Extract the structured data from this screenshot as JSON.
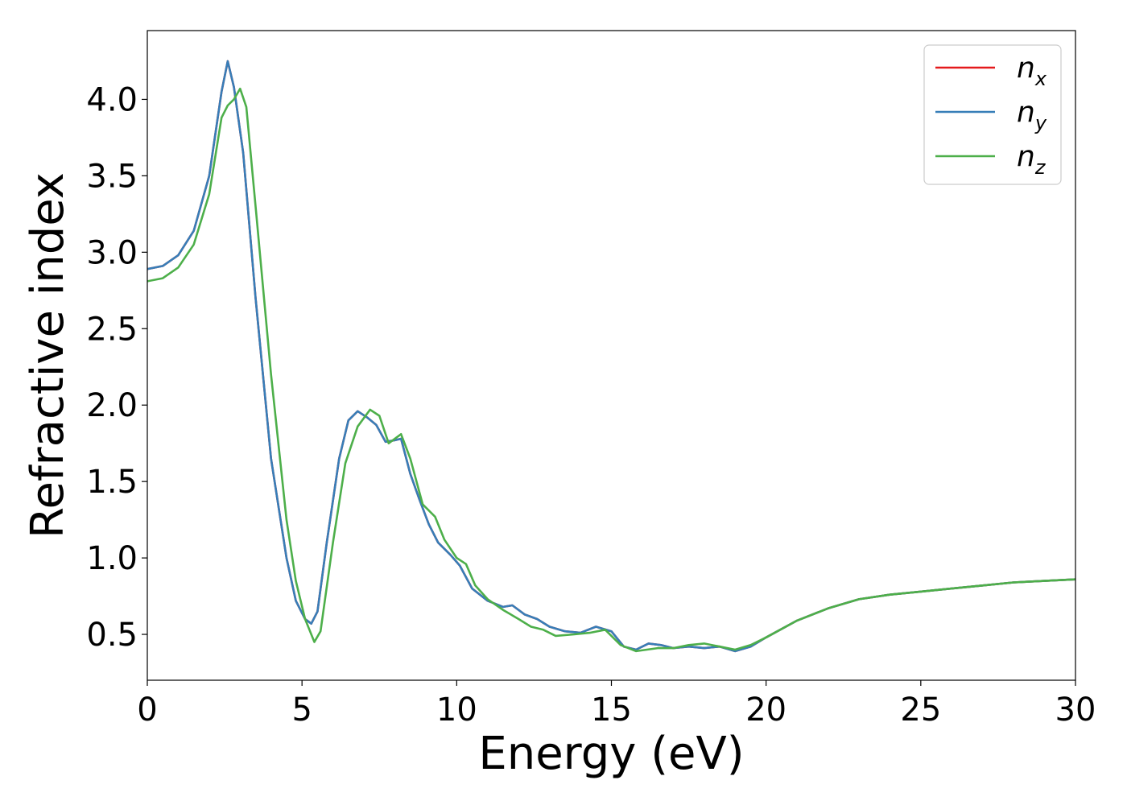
{
  "chart_data": {
    "type": "line",
    "xlabel": "Energy (eV)",
    "ylabel": "Refractive index",
    "xlim": [
      0,
      30
    ],
    "ylim": [
      0.2,
      4.45
    ],
    "xticks": [
      0,
      5,
      10,
      15,
      20,
      25,
      30
    ],
    "yticks": [
      0.5,
      1.0,
      1.5,
      2.0,
      2.5,
      3.0,
      3.5,
      4.0
    ],
    "xtick_labels": [
      "0",
      "5",
      "10",
      "15",
      "20",
      "25",
      "30"
    ],
    "ytick_labels": [
      "0.5",
      "1.0",
      "1.5",
      "2.0",
      "2.5",
      "3.0",
      "3.5",
      "4.0"
    ],
    "grid": false,
    "legend_position": "top-right",
    "series": [
      {
        "name": "n_x",
        "legend_base": "n",
        "legend_sub": "x",
        "color": "#e41a1c",
        "points": [
          [
            0,
            2.89
          ],
          [
            0.5,
            2.91
          ],
          [
            1,
            2.98
          ],
          [
            1.5,
            3.14
          ],
          [
            2,
            3.5
          ],
          [
            2.4,
            4.05
          ],
          [
            2.6,
            4.25
          ],
          [
            2.8,
            4.08
          ],
          [
            3.1,
            3.65
          ],
          [
            3.5,
            2.7
          ],
          [
            4,
            1.65
          ],
          [
            4.5,
            1.0
          ],
          [
            4.8,
            0.72
          ],
          [
            5.1,
            0.6
          ],
          [
            5.3,
            0.57
          ],
          [
            5.5,
            0.65
          ],
          [
            5.8,
            1.1
          ],
          [
            6.2,
            1.65
          ],
          [
            6.5,
            1.9
          ],
          [
            6.8,
            1.96
          ],
          [
            7.1,
            1.92
          ],
          [
            7.4,
            1.87
          ],
          [
            7.7,
            1.76
          ],
          [
            8,
            1.77
          ],
          [
            8.2,
            1.78
          ],
          [
            8.5,
            1.55
          ],
          [
            8.8,
            1.38
          ],
          [
            9.1,
            1.22
          ],
          [
            9.4,
            1.1
          ],
          [
            9.8,
            1.02
          ],
          [
            10.1,
            0.95
          ],
          [
            10.5,
            0.8
          ],
          [
            11,
            0.72
          ],
          [
            11.5,
            0.68
          ],
          [
            11.8,
            0.69
          ],
          [
            12.2,
            0.63
          ],
          [
            12.6,
            0.6
          ],
          [
            13,
            0.55
          ],
          [
            13.5,
            0.52
          ],
          [
            14,
            0.51
          ],
          [
            14.5,
            0.55
          ],
          [
            15,
            0.52
          ],
          [
            15.4,
            0.42
          ],
          [
            15.8,
            0.4
          ],
          [
            16.2,
            0.44
          ],
          [
            16.6,
            0.43
          ],
          [
            17,
            0.41
          ],
          [
            17.5,
            0.42
          ],
          [
            18,
            0.41
          ],
          [
            18.5,
            0.42
          ],
          [
            19,
            0.39
          ],
          [
            19.5,
            0.42
          ],
          [
            20,
            0.48
          ],
          [
            21,
            0.59
          ],
          [
            22,
            0.67
          ],
          [
            23,
            0.73
          ],
          [
            24,
            0.76
          ],
          [
            25,
            0.78
          ],
          [
            26,
            0.8
          ],
          [
            27,
            0.82
          ],
          [
            28,
            0.84
          ],
          [
            29,
            0.85
          ],
          [
            30,
            0.86
          ]
        ]
      },
      {
        "name": "n_y",
        "legend_base": "n",
        "legend_sub": "y",
        "color": "#377eb8",
        "points": [
          [
            0,
            2.89
          ],
          [
            0.5,
            2.91
          ],
          [
            1,
            2.98
          ],
          [
            1.5,
            3.14
          ],
          [
            2,
            3.5
          ],
          [
            2.4,
            4.05
          ],
          [
            2.6,
            4.25
          ],
          [
            2.8,
            4.08
          ],
          [
            3.1,
            3.65
          ],
          [
            3.5,
            2.7
          ],
          [
            4,
            1.65
          ],
          [
            4.5,
            1.0
          ],
          [
            4.8,
            0.72
          ],
          [
            5.1,
            0.6
          ],
          [
            5.3,
            0.57
          ],
          [
            5.5,
            0.65
          ],
          [
            5.8,
            1.1
          ],
          [
            6.2,
            1.65
          ],
          [
            6.5,
            1.9
          ],
          [
            6.8,
            1.96
          ],
          [
            7.1,
            1.92
          ],
          [
            7.4,
            1.87
          ],
          [
            7.7,
            1.76
          ],
          [
            8,
            1.77
          ],
          [
            8.2,
            1.78
          ],
          [
            8.5,
            1.55
          ],
          [
            8.8,
            1.38
          ],
          [
            9.1,
            1.22
          ],
          [
            9.4,
            1.1
          ],
          [
            9.8,
            1.02
          ],
          [
            10.1,
            0.95
          ],
          [
            10.5,
            0.8
          ],
          [
            11,
            0.72
          ],
          [
            11.5,
            0.68
          ],
          [
            11.8,
            0.69
          ],
          [
            12.2,
            0.63
          ],
          [
            12.6,
            0.6
          ],
          [
            13,
            0.55
          ],
          [
            13.5,
            0.52
          ],
          [
            14,
            0.51
          ],
          [
            14.5,
            0.55
          ],
          [
            15,
            0.52
          ],
          [
            15.4,
            0.42
          ],
          [
            15.8,
            0.4
          ],
          [
            16.2,
            0.44
          ],
          [
            16.6,
            0.43
          ],
          [
            17,
            0.41
          ],
          [
            17.5,
            0.42
          ],
          [
            18,
            0.41
          ],
          [
            18.5,
            0.42
          ],
          [
            19,
            0.39
          ],
          [
            19.5,
            0.42
          ],
          [
            20,
            0.48
          ],
          [
            21,
            0.59
          ],
          [
            22,
            0.67
          ],
          [
            23,
            0.73
          ],
          [
            24,
            0.76
          ],
          [
            25,
            0.78
          ],
          [
            26,
            0.8
          ],
          [
            27,
            0.82
          ],
          [
            28,
            0.84
          ],
          [
            29,
            0.85
          ],
          [
            30,
            0.86
          ]
        ]
      },
      {
        "name": "n_z",
        "legend_base": "n",
        "legend_sub": "z",
        "color": "#4daf4a",
        "points": [
          [
            0,
            2.81
          ],
          [
            0.5,
            2.83
          ],
          [
            1,
            2.9
          ],
          [
            1.5,
            3.05
          ],
          [
            2,
            3.38
          ],
          [
            2.4,
            3.88
          ],
          [
            2.6,
            3.96
          ],
          [
            2.8,
            4.0
          ],
          [
            3.0,
            4.07
          ],
          [
            3.2,
            3.95
          ],
          [
            3.5,
            3.3
          ],
          [
            4,
            2.2
          ],
          [
            4.5,
            1.25
          ],
          [
            4.8,
            0.85
          ],
          [
            5.1,
            0.6
          ],
          [
            5.4,
            0.45
          ],
          [
            5.6,
            0.52
          ],
          [
            6,
            1.1
          ],
          [
            6.4,
            1.62
          ],
          [
            6.8,
            1.86
          ],
          [
            7.2,
            1.97
          ],
          [
            7.5,
            1.93
          ],
          [
            7.8,
            1.75
          ],
          [
            8.2,
            1.81
          ],
          [
            8.5,
            1.65
          ],
          [
            8.9,
            1.35
          ],
          [
            9.3,
            1.27
          ],
          [
            9.6,
            1.12
          ],
          [
            10,
            1.0
          ],
          [
            10.3,
            0.96
          ],
          [
            10.6,
            0.82
          ],
          [
            11,
            0.73
          ],
          [
            11.5,
            0.66
          ],
          [
            12,
            0.6
          ],
          [
            12.4,
            0.55
          ],
          [
            12.8,
            0.53
          ],
          [
            13.2,
            0.49
          ],
          [
            13.8,
            0.5
          ],
          [
            14.3,
            0.51
          ],
          [
            14.8,
            0.53
          ],
          [
            15.3,
            0.43
          ],
          [
            15.8,
            0.39
          ],
          [
            16.5,
            0.41
          ],
          [
            17,
            0.41
          ],
          [
            17.5,
            0.43
          ],
          [
            18,
            0.44
          ],
          [
            18.5,
            0.42
          ],
          [
            19,
            0.4
          ],
          [
            19.5,
            0.43
          ],
          [
            20,
            0.48
          ],
          [
            21,
            0.59
          ],
          [
            22,
            0.67
          ],
          [
            23,
            0.73
          ],
          [
            24,
            0.76
          ],
          [
            25,
            0.78
          ],
          [
            26,
            0.8
          ],
          [
            27,
            0.82
          ],
          [
            28,
            0.84
          ],
          [
            29,
            0.85
          ],
          [
            30,
            0.86
          ]
        ]
      }
    ]
  }
}
